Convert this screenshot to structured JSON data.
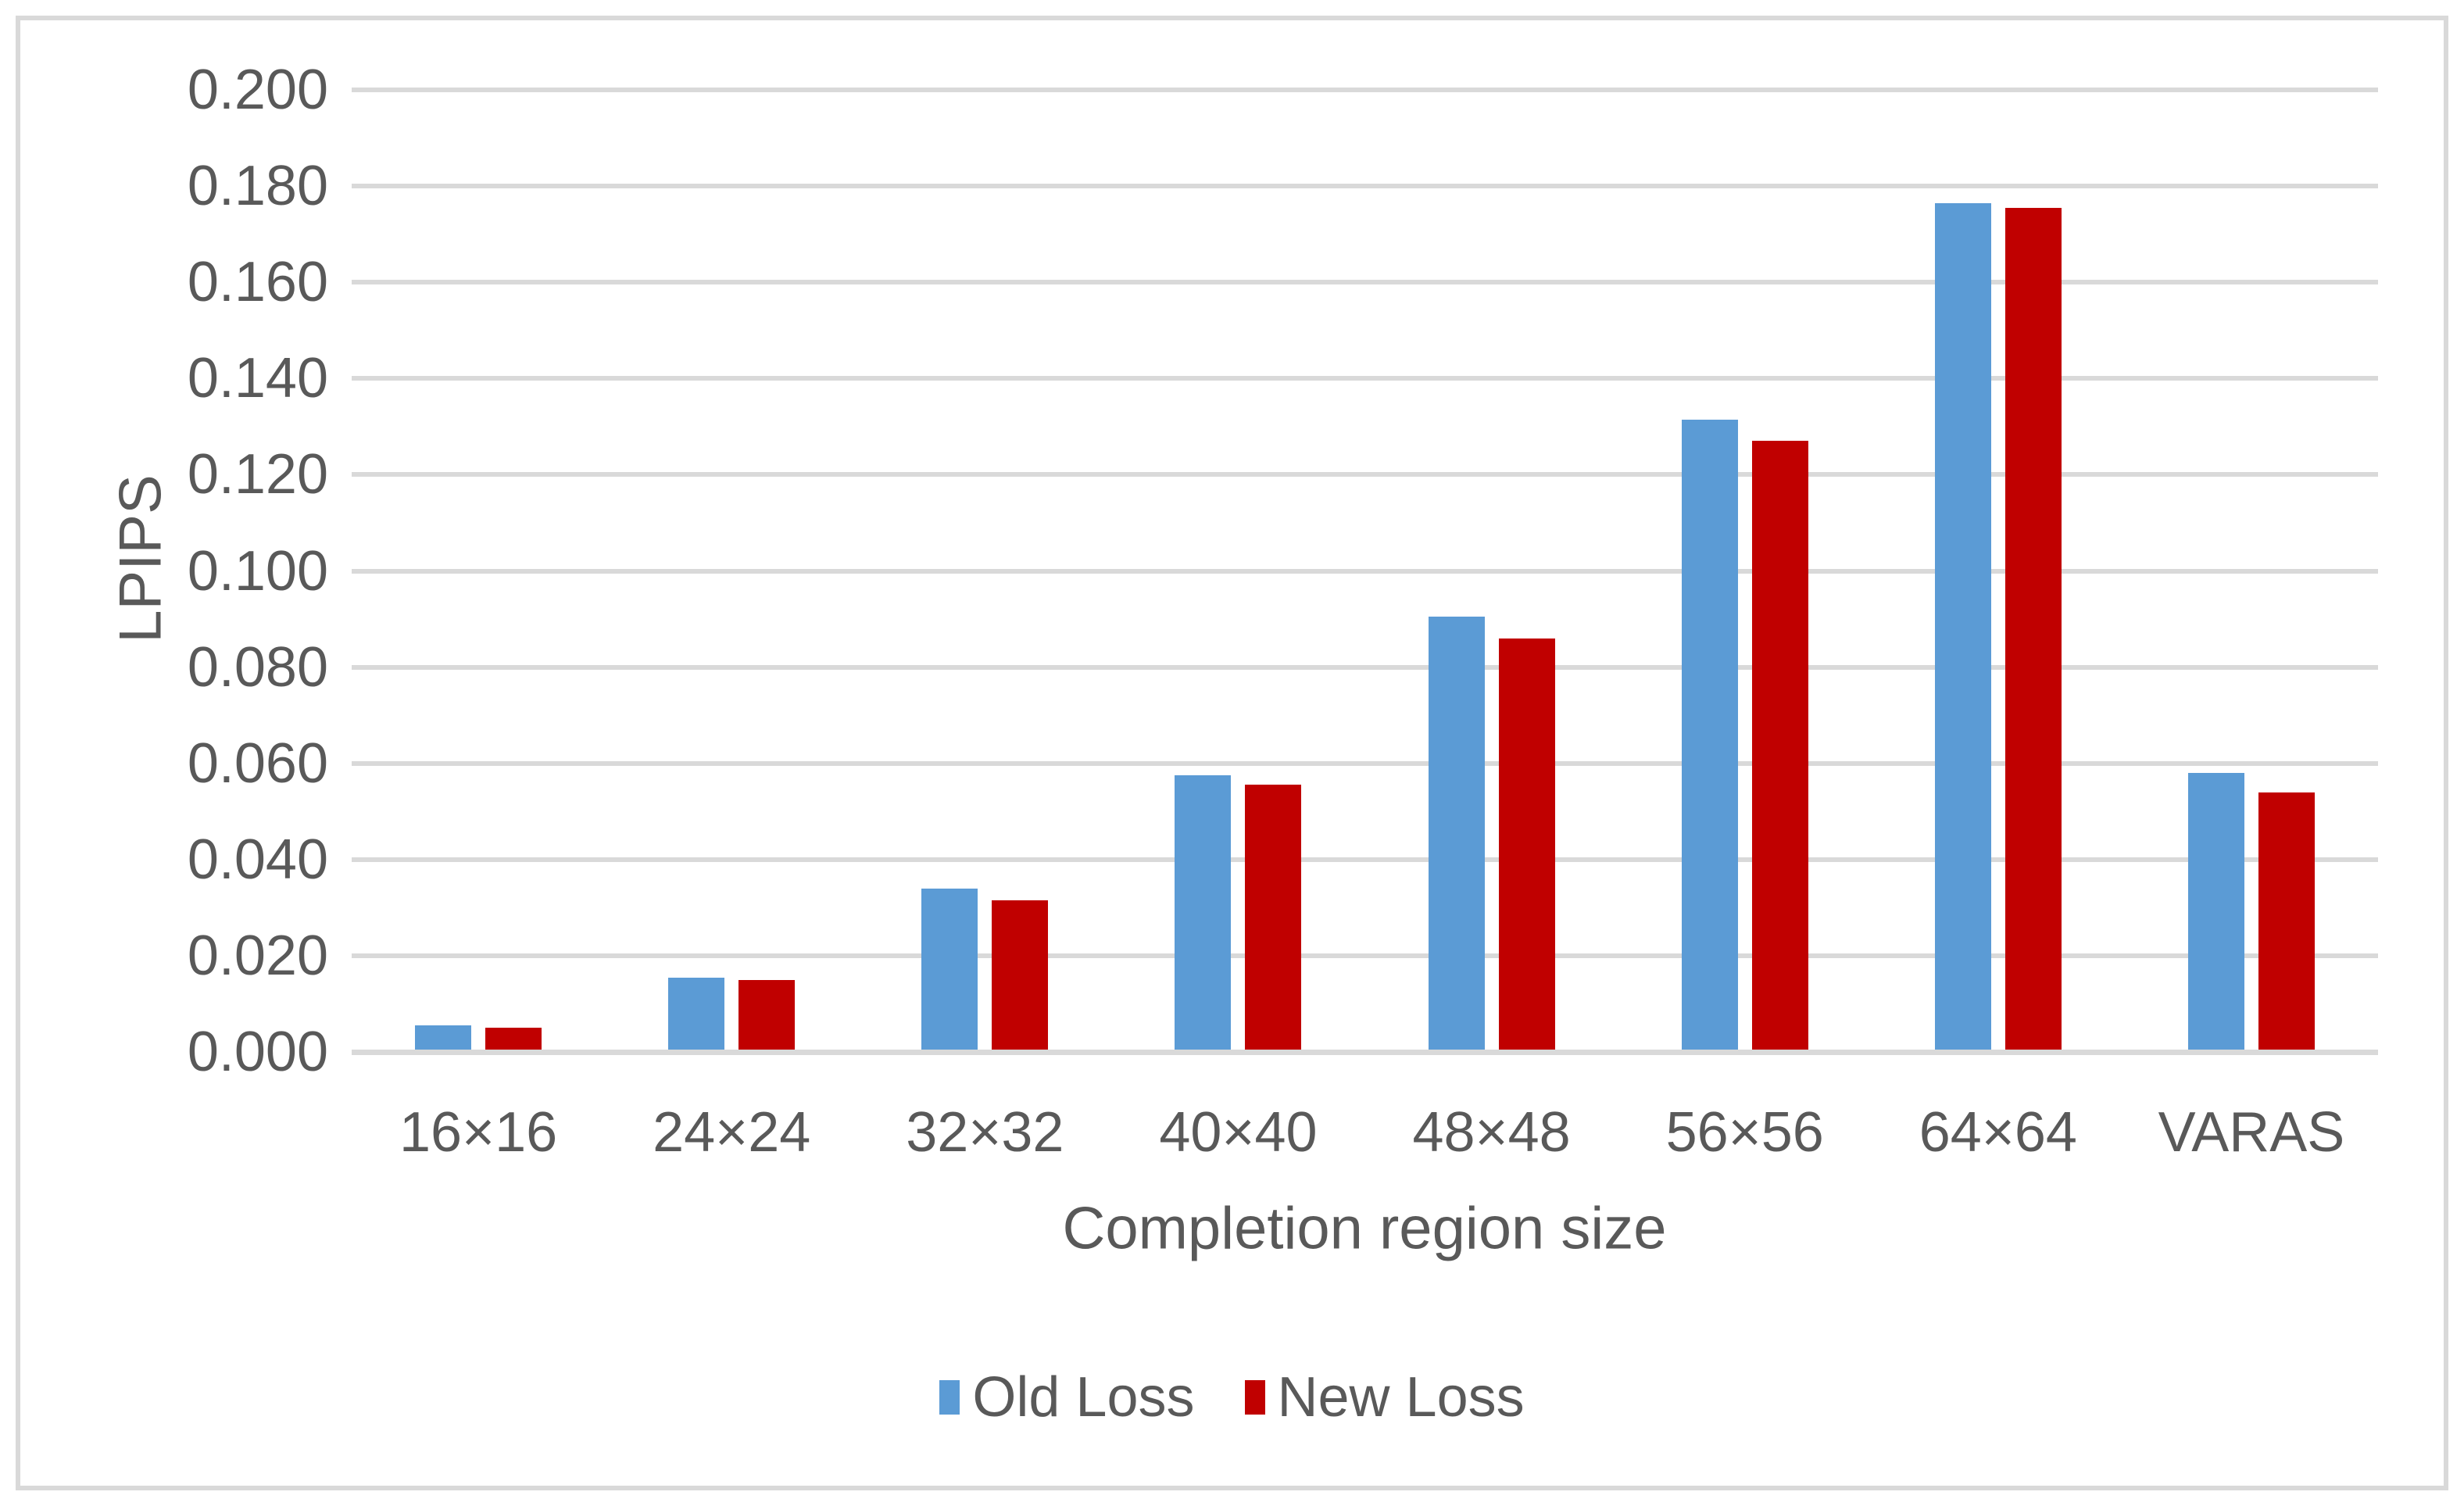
{
  "figure": {
    "background_color": "#FFFFFF",
    "border_color": "#D9D9D9"
  },
  "chart_data": {
    "type": "bar",
    "title": "",
    "categories": [
      "16×16",
      "24×24",
      "32×32",
      "40×40",
      "48×48",
      "56×56",
      "64×64",
      "VARAS"
    ],
    "series": [
      {
        "name": "Old Loss",
        "color": "#5B9BD5",
        "values": [
          0.005,
          0.015,
          0.0335,
          0.057,
          0.09,
          0.131,
          0.176,
          0.0575
        ]
      },
      {
        "name": "New Loss",
        "color": "#C00000",
        "values": [
          0.0045,
          0.0145,
          0.031,
          0.055,
          0.0855,
          0.1265,
          0.175,
          0.0535
        ]
      }
    ],
    "xlabel": "Completion region size",
    "ylabel": "LPIPS",
    "ylim": [
      0,
      0.2
    ],
    "ytick_step": 0.02,
    "ytick_labels": [
      "0.000",
      "0.020",
      "0.040",
      "0.060",
      "0.080",
      "0.100",
      "0.120",
      "0.140",
      "0.160",
      "0.180",
      "0.200"
    ],
    "grid": true,
    "gridline_color": "#D9D9D9",
    "text_color": "#595959",
    "legend_position": "bottom"
  }
}
